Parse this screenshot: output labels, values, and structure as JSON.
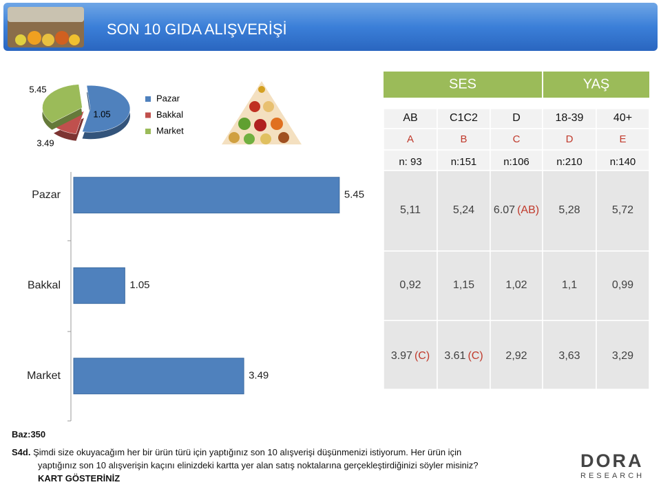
{
  "header": {
    "title": "SON 10 GIDA ALIŞVERİŞİ"
  },
  "chart_data": [
    {
      "type": "pie",
      "categories": [
        "Pazar",
        "Bakkal",
        "Market"
      ],
      "values": [
        5.45,
        1.05,
        3.49
      ],
      "colors": [
        "#4f81bd",
        "#c0504d",
        "#9bbb59"
      ],
      "legend": "right"
    },
    {
      "type": "hbar",
      "categories": [
        "Pazar",
        "Bakkal",
        "Market"
      ],
      "values": [
        5.45,
        1.05,
        3.49
      ],
      "color": "#4f81bd",
      "xlim": [
        0,
        7
      ]
    }
  ],
  "table": {
    "group_headers": [
      "SES",
      "YAŞ"
    ],
    "columns": [
      "AB",
      "C1C2",
      "D",
      "18-39",
      "40+"
    ],
    "letters": [
      "A",
      "B",
      "C",
      "D",
      "E"
    ],
    "n": [
      "n: 93",
      "n:151",
      "n:106",
      "n:210",
      "n:140"
    ],
    "rows": [
      [
        [
          "5,11"
        ],
        [
          "5,24"
        ],
        [
          "6.07",
          "(AB)"
        ],
        [
          "5,28"
        ],
        [
          "5,72"
        ]
      ],
      [
        [
          "0,92"
        ],
        [
          "1,15"
        ],
        [
          "1,02"
        ],
        [
          "1,1"
        ],
        [
          "0,99"
        ]
      ],
      [
        [
          "3.97",
          "(C)"
        ],
        [
          "3.61",
          "(C)"
        ],
        [
          "2,92"
        ],
        [
          "3,63"
        ],
        [
          "3,29"
        ]
      ]
    ]
  },
  "footer": {
    "base": "Baz:350",
    "question_id": "S4d.",
    "question": [
      "Şimdi size okuyacağım her bir ürün türü için yaptığınız son 10 alışverişi düşünmenizi istiyorum. Her ürün için",
      "yaptığınız son 10 alışverişin kaçını elinizdeki kartta yer alan satış noktalarına gerçekleştirdiğinizi söyler misiniz?"
    ],
    "instruction": "KART GÖSTERİNİZ"
  },
  "logo": {
    "name": "DORA",
    "tagline": "RESEARCH"
  }
}
